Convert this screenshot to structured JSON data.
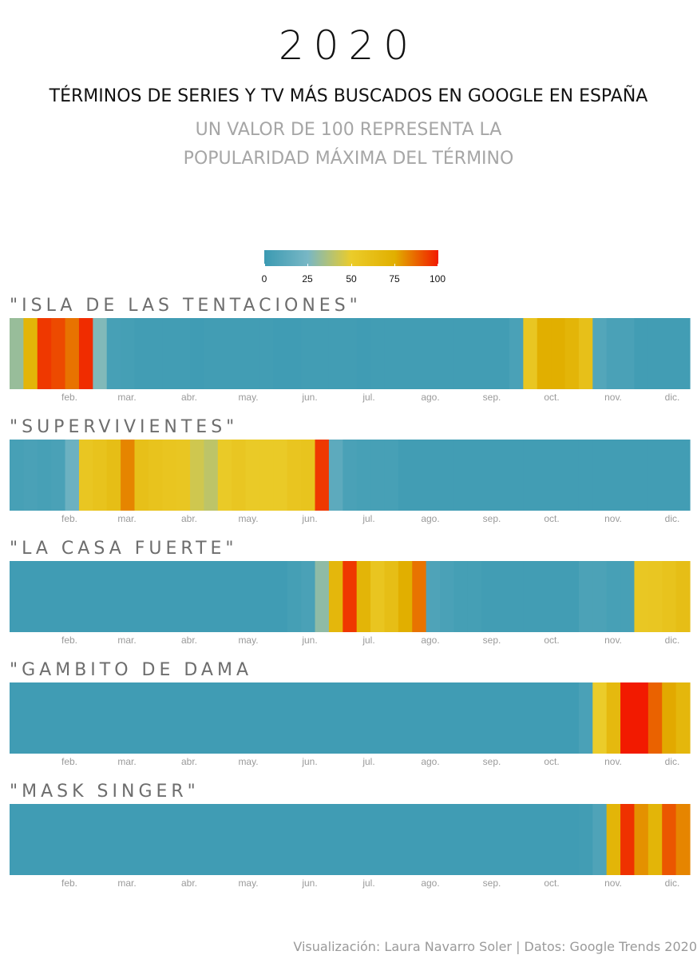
{
  "header": {
    "year": "2020",
    "title": "TÉRMINOS DE SERIES Y TV MÁS BUSCADOS EN GOOGLE EN ESPAÑA",
    "subtitle_line1": "UN VALOR DE 100 REPRESENTA LA",
    "subtitle_line2": "POPULARIDAD MÁXIMA DEL TÉRMINO"
  },
  "legend": {
    "ticks": [
      "0",
      "25",
      "50",
      "75",
      "100"
    ],
    "colors": [
      "#3b9ab2",
      "#78b7c5",
      "#ebcc2a",
      "#e1af00",
      "#f21a00"
    ]
  },
  "footer": {
    "credit": "Visualización: Laura Navarro Soler | Datos: Google Trends 2020"
  },
  "chart_data": {
    "type": "heatmap",
    "value_range": [
      0,
      100
    ],
    "x_axis_labels": [
      "feb.",
      "mar.",
      "abr.",
      "may.",
      "jun.",
      "jul.",
      "ago.",
      "sep.",
      "oct.",
      "nov.",
      "dic."
    ],
    "weeks_per_row": 49,
    "series": [
      {
        "name": "\"ISLA DE LAS  TENTACIONES\"",
        "values": [
          32,
          70,
          95,
          92,
          85,
          97,
          27,
          5,
          4,
          3,
          3,
          3,
          3,
          2,
          3,
          3,
          3,
          3,
          3,
          2,
          2,
          3,
          3,
          3,
          3,
          2,
          3,
          3,
          3,
          3,
          3,
          3,
          3,
          3,
          3,
          3,
          6,
          55,
          75,
          75,
          70,
          60,
          10,
          6,
          6,
          3,
          3,
          3,
          3
        ]
      },
      {
        "name": "\"SUPERVIVIENTES\"",
        "values": [
          5,
          6,
          5,
          6,
          20,
          55,
          58,
          62,
          82,
          60,
          58,
          56,
          55,
          44,
          40,
          52,
          55,
          52,
          52,
          52,
          56,
          57,
          95,
          14,
          6,
          5,
          5,
          5,
          3,
          3,
          3,
          3,
          3,
          3,
          3,
          3,
          3,
          3,
          3,
          3,
          3,
          3,
          3,
          3,
          3,
          3,
          3,
          3,
          3
        ]
      },
      {
        "name": "\"LA CASA FUERTE\"",
        "values": [
          2,
          2,
          2,
          2,
          2,
          2,
          2,
          2,
          2,
          2,
          2,
          2,
          2,
          2,
          2,
          2,
          2,
          2,
          2,
          2,
          4,
          6,
          30,
          68,
          95,
          70,
          56,
          62,
          75,
          85,
          8,
          6,
          4,
          4,
          3,
          3,
          3,
          3,
          3,
          3,
          3,
          7,
          7,
          5,
          5,
          54,
          55,
          58,
          62
        ]
      },
      {
        "name": "\"GAMBITO DE DAMA",
        "values": [
          2,
          2,
          2,
          2,
          2,
          2,
          2,
          2,
          2,
          2,
          2,
          2,
          2,
          2,
          2,
          2,
          2,
          2,
          2,
          2,
          2,
          2,
          2,
          2,
          2,
          2,
          2,
          2,
          2,
          2,
          2,
          2,
          2,
          2,
          2,
          2,
          2,
          2,
          2,
          2,
          2,
          6,
          50,
          66,
          100,
          100,
          88,
          76,
          68
        ]
      },
      {
        "name": "\"MASK SINGER\"",
        "values": [
          2,
          2,
          2,
          2,
          2,
          2,
          2,
          2,
          2,
          2,
          2,
          2,
          2,
          2,
          2,
          2,
          2,
          2,
          2,
          2,
          2,
          2,
          2,
          2,
          2,
          2,
          2,
          2,
          2,
          2,
          2,
          2,
          2,
          2,
          2,
          2,
          2,
          2,
          2,
          2,
          2,
          3,
          8,
          70,
          96,
          80,
          70,
          90,
          82
        ]
      }
    ]
  }
}
